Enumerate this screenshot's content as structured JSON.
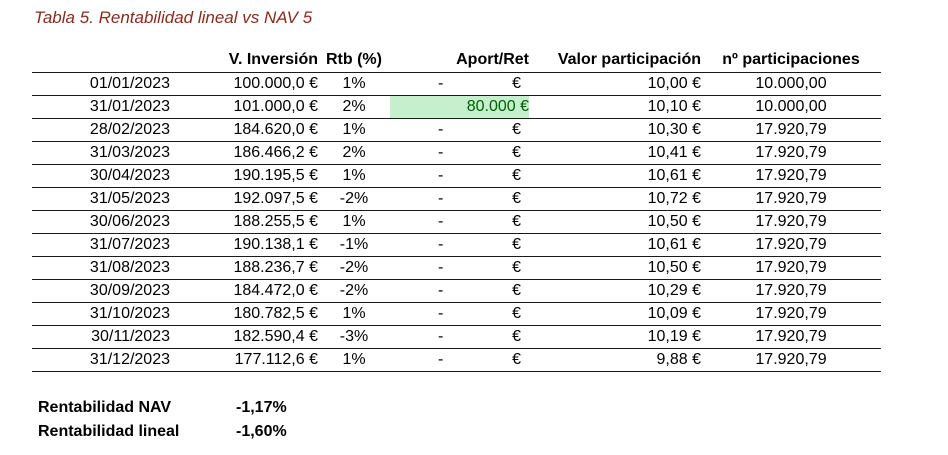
{
  "title": "Tabla 5. Rentabilidad lineal vs NAV 5",
  "headers": [
    "",
    "V. Inversión",
    "Rtb (%)",
    "Aport/Ret",
    "Valor participación",
    "nº participaciones"
  ],
  "rows": [
    {
      "fecha": "01/01/2023",
      "inversion": "100.000,0 €",
      "rtb": "1%",
      "aport": "-",
      "aport_eur": "€",
      "valor": "10,00 €",
      "participaciones": "10.000,00",
      "highlight": false
    },
    {
      "fecha": "31/01/2023",
      "inversion": "101.000,0 €",
      "rtb": "2%",
      "aport": "80.000 €",
      "aport_eur": "",
      "valor": "10,10 €",
      "participaciones": "10.000,00",
      "highlight": true
    },
    {
      "fecha": "28/02/2023",
      "inversion": "184.620,0 €",
      "rtb": "1%",
      "aport": "-",
      "aport_eur": "€",
      "valor": "10,30 €",
      "participaciones": "17.920,79",
      "highlight": false
    },
    {
      "fecha": "31/03/2023",
      "inversion": "186.466,2 €",
      "rtb": "2%",
      "aport": "-",
      "aport_eur": "€",
      "valor": "10,41 €",
      "participaciones": "17.920,79",
      "highlight": false
    },
    {
      "fecha": "30/04/2023",
      "inversion": "190.195,5 €",
      "rtb": "1%",
      "aport": "-",
      "aport_eur": "€",
      "valor": "10,61 €",
      "participaciones": "17.920,79",
      "highlight": false
    },
    {
      "fecha": "31/05/2023",
      "inversion": "192.097,5 €",
      "rtb": "-2%",
      "aport": "-",
      "aport_eur": "€",
      "valor": "10,72 €",
      "participaciones": "17.920,79",
      "highlight": false
    },
    {
      "fecha": "30/06/2023",
      "inversion": "188.255,5 €",
      "rtb": "1%",
      "aport": "-",
      "aport_eur": "€",
      "valor": "10,50 €",
      "participaciones": "17.920,79",
      "highlight": false
    },
    {
      "fecha": "31/07/2023",
      "inversion": "190.138,1 €",
      "rtb": "-1%",
      "aport": "-",
      "aport_eur": "€",
      "valor": "10,61 €",
      "participaciones": "17.920,79",
      "highlight": false
    },
    {
      "fecha": "31/08/2023",
      "inversion": "188.236,7 €",
      "rtb": "-2%",
      "aport": "-",
      "aport_eur": "€",
      "valor": "10,50 €",
      "participaciones": "17.920,79",
      "highlight": false
    },
    {
      "fecha": "30/09/2023",
      "inversion": "184.472,0 €",
      "rtb": "-2%",
      "aport": "-",
      "aport_eur": "€",
      "valor": "10,29 €",
      "participaciones": "17.920,79",
      "highlight": false
    },
    {
      "fecha": "31/10/2023",
      "inversion": "180.782,5 €",
      "rtb": "1%",
      "aport": "-",
      "aport_eur": "€",
      "valor": "10,09 €",
      "participaciones": "17.920,79",
      "highlight": false
    },
    {
      "fecha": "30/11/2023",
      "inversion": "182.590,4 €",
      "rtb": "-3%",
      "aport": "-",
      "aport_eur": "€",
      "valor": "10,19 €",
      "participaciones": "17.920,79",
      "highlight": false
    },
    {
      "fecha": "31/12/2023",
      "inversion": "177.112,6 €",
      "rtb": "1%",
      "aport": "-",
      "aport_eur": "€",
      "valor": "9,88 €",
      "participaciones": "17.920,79",
      "highlight": false
    }
  ],
  "summary": [
    {
      "label": "Rentabilidad NAV",
      "value": "-1,17%"
    },
    {
      "label": "Rentabilidad lineal",
      "value": "-1,60%"
    }
  ],
  "colors": {
    "title": "#8b2a1e",
    "highlight_bg": "#c6efce",
    "highlight_text": "#006100"
  }
}
